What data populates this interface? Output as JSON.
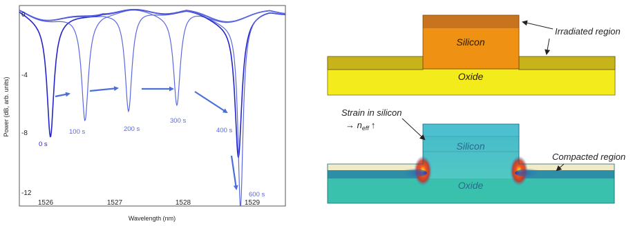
{
  "spectrum": {
    "y_ticks": [
      "0",
      "-4",
      "-8",
      "-12"
    ],
    "x_ticks": [
      "1526",
      "1527",
      "1528",
      "1529"
    ],
    "xlabel": "Wavelength (nm)",
    "ylabel": "Power (dB, arb. units)",
    "time_labels": [
      "0 s",
      "100 s",
      "200 s",
      "300 s",
      "400 s",
      "600 s"
    ],
    "colors": {
      "dark_trace": "#2323c8",
      "light_trace": "#5a68e0",
      "arrow": "#4a6fd8"
    }
  },
  "chart_data": {
    "type": "line",
    "xlabel": "Wavelength (nm)",
    "ylabel": "Power (dB, arb. units)",
    "xlim": [
      1525.6,
      1529.45
    ],
    "ylim": [
      -13.2,
      0.2
    ],
    "series": [
      {
        "name": "0 s",
        "resonance_nm": 1526.05,
        "depth_db": -7.8
      },
      {
        "name": "100 s",
        "resonance_nm": 1526.55,
        "depth_db": -7.0
      },
      {
        "name": "200 s",
        "resonance_nm": 1527.18,
        "depth_db": -6.8
      },
      {
        "name": "300 s",
        "resonance_nm": 1527.88,
        "depth_db": -6.2
      },
      {
        "name": "400 s",
        "resonance_nm": 1528.77,
        "depth_db": -9.2
      },
      {
        "name": "600 s",
        "resonance_nm": 1528.8,
        "depth_db": -12.6
      }
    ]
  },
  "diagram_top": {
    "silicon_label": "Silicon",
    "oxide_label": "Oxide",
    "annotation": "Irradiated region",
    "colors": {
      "irradiated": "#c8731e",
      "silicon": "#ef9112",
      "oxide_band": "#c7b41a",
      "oxide": "#f4eb1c"
    }
  },
  "diagram_bottom": {
    "silicon_label": "Silicon",
    "oxide_label": "Oxide",
    "strain_label": "Strain in silicon",
    "neff_label": "→ n",
    "neff_sub": "eff",
    "neff_arrow": "↑",
    "compacted_label": "Compacted region",
    "colors": {
      "silicon": "#4bc3cc",
      "oxide": "#39c1ad",
      "band": "#2d8fa6",
      "cladding": "#f1ecc7",
      "stress": "#e8461a"
    }
  }
}
